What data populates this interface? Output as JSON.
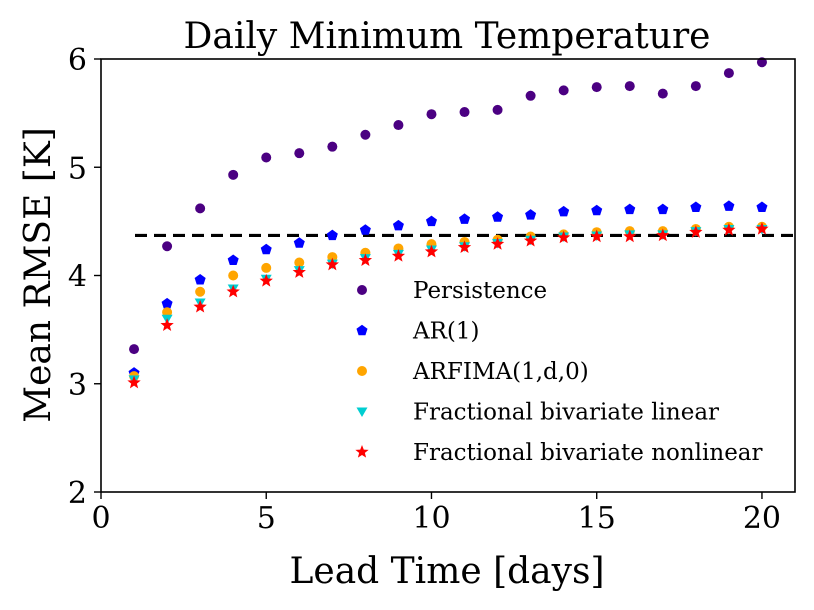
{
  "chart_data": {
    "type": "scatter",
    "title": "Daily Minimum Temperature",
    "xlabel": "Lead Time [days]",
    "ylabel": "Mean RMSE [K]",
    "xlim": [
      0,
      21
    ],
    "ylim": [
      2,
      6
    ],
    "xticks": [
      0,
      5,
      10,
      15,
      20
    ],
    "yticks": [
      2,
      3,
      4,
      5,
      6
    ],
    "x": [
      1,
      2,
      3,
      4,
      5,
      6,
      7,
      8,
      9,
      10,
      11,
      12,
      13,
      14,
      15,
      16,
      17,
      18,
      19,
      20
    ],
    "reference_line": {
      "y": 4.37,
      "style": "dashed",
      "color": "#000000"
    },
    "legend_position": "lower-right",
    "series": [
      {
        "name": "Persistence",
        "marker": "circle",
        "color": "#4b0082",
        "values": [
          3.32,
          4.27,
          4.62,
          4.93,
          5.09,
          5.13,
          5.19,
          5.3,
          5.39,
          5.49,
          5.51,
          5.53,
          5.66,
          5.71,
          5.74,
          5.75,
          5.68,
          5.75,
          5.87,
          5.97
        ]
      },
      {
        "name": "AR(1)",
        "marker": "pentagon",
        "color": "#0000ff",
        "values": [
          3.1,
          3.74,
          3.96,
          4.14,
          4.24,
          4.3,
          4.37,
          4.42,
          4.46,
          4.5,
          4.52,
          4.54,
          4.56,
          4.59,
          4.6,
          4.61,
          4.61,
          4.63,
          4.64,
          4.63
        ]
      },
      {
        "name": "ARFIMA(1,d,0)",
        "marker": "circle",
        "color": "#ffa500",
        "values": [
          3.07,
          3.66,
          3.85,
          4.0,
          4.07,
          4.12,
          4.17,
          4.21,
          4.25,
          4.29,
          4.31,
          4.33,
          4.36,
          4.38,
          4.4,
          4.41,
          4.41,
          4.43,
          4.45,
          4.45
        ]
      },
      {
        "name": "Fractional bivariate linear",
        "marker": "triangle-down",
        "color": "#00ced1",
        "values": [
          3.04,
          3.6,
          3.75,
          3.88,
          3.97,
          4.05,
          4.11,
          4.16,
          4.2,
          4.24,
          4.27,
          4.3,
          4.33,
          4.36,
          4.37,
          4.38,
          4.38,
          4.41,
          4.43,
          4.43
        ]
      },
      {
        "name": "Fractional bivariate nonlinear",
        "marker": "star",
        "color": "#ff0000",
        "values": [
          3.01,
          3.54,
          3.71,
          3.85,
          3.95,
          4.03,
          4.1,
          4.14,
          4.18,
          4.22,
          4.26,
          4.29,
          4.32,
          4.35,
          4.36,
          4.36,
          4.37,
          4.4,
          4.42,
          4.43
        ]
      }
    ]
  }
}
